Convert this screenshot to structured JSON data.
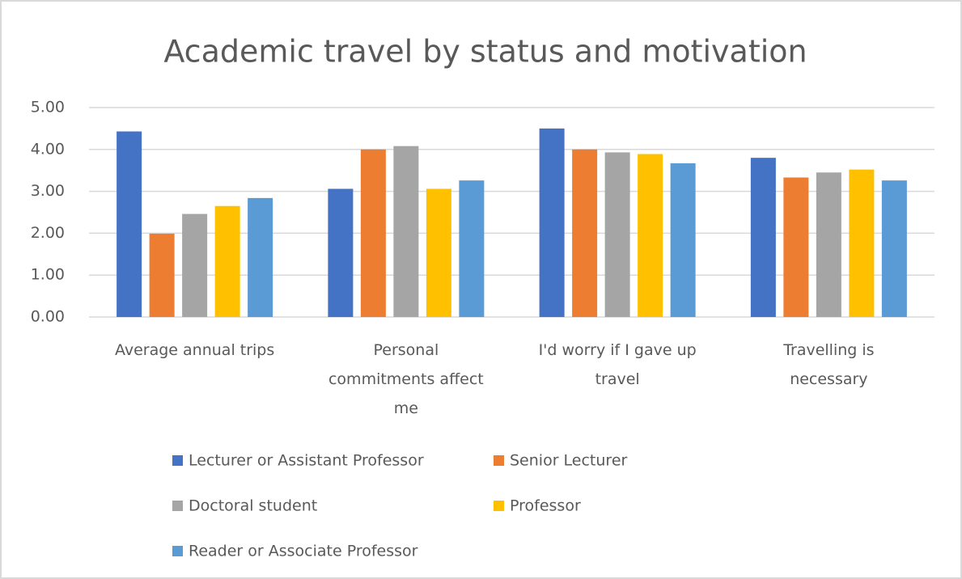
{
  "chart_data": {
    "type": "bar",
    "title": "Academic travel by status and motivation",
    "categories": [
      "Average annual trips",
      "Personal commitments affect me",
      "I'd worry if I gave up travel",
      "Travelling is necessary"
    ],
    "series": [
      {
        "name": "Lecturer or Assistant Professor",
        "color": "#4472c4",
        "values": [
          4.43,
          3.06,
          4.5,
          3.8
        ]
      },
      {
        "name": "Senior Lecturer",
        "color": "#ed7d31",
        "values": [
          1.99,
          4.0,
          4.0,
          3.33
        ]
      },
      {
        "name": "Doctoral student",
        "color": "#a5a5a5",
        "values": [
          2.46,
          4.08,
          3.93,
          3.45
        ]
      },
      {
        "name": "Professor",
        "color": "#ffc000",
        "values": [
          2.65,
          3.06,
          3.89,
          3.52
        ]
      },
      {
        "name": "Reader or Associate Professor",
        "color": "#5b9bd5",
        "values": [
          2.84,
          3.26,
          3.67,
          3.26
        ]
      }
    ],
    "ylim": [
      0,
      5
    ],
    "yticks": [
      {
        "value": 0,
        "label": "0.00"
      },
      {
        "value": 1,
        "label": "1.00"
      },
      {
        "value": 2,
        "label": "2.00"
      },
      {
        "value": 3,
        "label": "3.00"
      },
      {
        "value": 4,
        "label": "4.00"
      },
      {
        "value": 5,
        "label": "5.00"
      }
    ],
    "grid": true,
    "legend": "bottom"
  }
}
